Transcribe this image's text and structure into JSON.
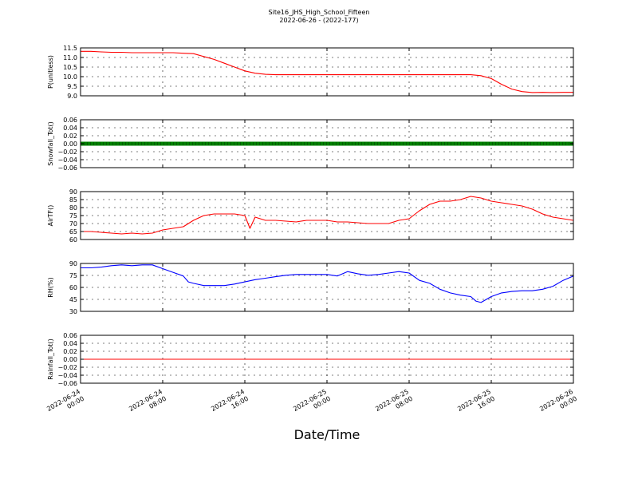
{
  "figure": {
    "title": "Site16_JHS_High_School_Fifteen",
    "subtitle": "2022-06-26 - (2022-177)",
    "xlabel": "Date/Time"
  },
  "chart_data": [
    {
      "type": "line",
      "ylabel": "P(unitless)",
      "ylim": [
        9.0,
        11.5
      ],
      "yticks": [
        "9.0",
        "9.5",
        "10.0",
        "10.5",
        "11.0",
        "11.5"
      ],
      "xlim": [
        0,
        48
      ],
      "xtick_labels": [
        "2022-06-24 00:00",
        "2022-06-24 08:00",
        "2022-06-24 16:00",
        "2022-06-25 00:00",
        "2022-06-25 08:00",
        "2022-06-25 16:00",
        "2022-06-26 00:00"
      ],
      "grid": true,
      "series": [
        {
          "color": "#ff0000",
          "x": [
            0,
            1,
            2,
            3,
            4,
            5,
            6,
            7,
            8,
            9,
            10,
            11,
            12,
            13,
            14,
            15,
            16,
            17,
            18,
            19,
            20,
            21,
            22,
            23,
            24,
            25,
            26,
            27,
            28,
            29,
            30,
            31,
            32,
            33,
            34,
            35,
            36,
            37,
            38,
            39,
            40,
            41,
            42,
            43,
            44,
            45,
            46,
            47,
            48
          ],
          "y": [
            11.32,
            11.32,
            11.29,
            11.27,
            11.27,
            11.25,
            11.25,
            11.25,
            11.25,
            11.25,
            11.22,
            11.2,
            11.05,
            10.9,
            10.7,
            10.5,
            10.3,
            10.18,
            10.12,
            10.1,
            10.1,
            10.1,
            10.1,
            10.1,
            10.1,
            10.1,
            10.1,
            10.1,
            10.1,
            10.1,
            10.1,
            10.1,
            10.1,
            10.1,
            10.1,
            10.1,
            10.1,
            10.1,
            10.1,
            10.05,
            9.9,
            9.6,
            9.35,
            9.22,
            9.17,
            9.18,
            9.17,
            9.18,
            9.18
          ]
        }
      ]
    },
    {
      "type": "line",
      "ylabel": "Snowfall_Tot()",
      "ylim": [
        -0.06,
        0.06
      ],
      "yticks": [
        "−0.06",
        "−0.04",
        "−0.02",
        "0.00",
        "0.02",
        "0.04",
        "0.06"
      ],
      "xlim": [
        0,
        48
      ],
      "xtick_labels": [
        "2022-06-24 00:00",
        "2022-06-24 08:00",
        "2022-06-24 16:00",
        "2022-06-25 00:00",
        "2022-06-25 08:00",
        "2022-06-25 16:00",
        "2022-06-26 00:00"
      ],
      "grid": true,
      "series": [
        {
          "color": "#008000",
          "style": "marker-line",
          "x": [
            0,
            48
          ],
          "y": [
            0.0,
            0.0
          ]
        }
      ]
    },
    {
      "type": "line",
      "ylabel": "AirTF()",
      "ylim": [
        60,
        90
      ],
      "yticks": [
        "60",
        "65",
        "70",
        "75",
        "80",
        "85",
        "90"
      ],
      "xlim": [
        0,
        48
      ],
      "xtick_labels": [
        "2022-06-24 00:00",
        "2022-06-24 08:00",
        "2022-06-24 16:00",
        "2022-06-25 00:00",
        "2022-06-25 08:00",
        "2022-06-25 16:00",
        "2022-06-26 00:00"
      ],
      "grid": true,
      "series": [
        {
          "color": "#ff0000",
          "x": [
            0,
            1,
            2,
            3,
            4,
            5,
            6,
            7,
            8,
            9,
            10,
            11,
            12,
            13,
            14,
            15,
            16,
            16.5,
            17,
            18,
            19,
            20,
            21,
            22,
            23,
            24,
            25,
            26,
            27,
            28,
            29,
            30,
            31,
            32,
            33,
            34,
            35,
            36,
            37,
            38,
            39,
            40,
            41,
            42,
            43,
            44,
            45,
            46,
            47,
            48
          ],
          "y": [
            65,
            65,
            64.5,
            64,
            63.5,
            64,
            63.5,
            64,
            66,
            67,
            68,
            72,
            75,
            76,
            76,
            76,
            75,
            67,
            74,
            72,
            72,
            71.5,
            71,
            72,
            72,
            72,
            71,
            71,
            70.5,
            70,
            70,
            70,
            72,
            73,
            78,
            82,
            84,
            84,
            85,
            87,
            86,
            84,
            83,
            82,
            81,
            79,
            76,
            74,
            73,
            72
          ]
        }
      ]
    },
    {
      "type": "line",
      "ylabel": "RH(%)",
      "ylim": [
        30,
        95
      ],
      "yticks": [
        "30",
        "45",
        "60",
        "75",
        "90"
      ],
      "xlim": [
        0,
        48
      ],
      "xtick_labels": [
        "2022-06-24 00:00",
        "2022-06-24 08:00",
        "2022-06-24 16:00",
        "2022-06-25 00:00",
        "2022-06-25 08:00",
        "2022-06-25 16:00",
        "2022-06-26 00:00"
      ],
      "grid": true,
      "series": [
        {
          "color": "#0000ff",
          "x": [
            0,
            1,
            2,
            3,
            4,
            5,
            6,
            7,
            8,
            9,
            10,
            10.5,
            11,
            12,
            13,
            14,
            15,
            16,
            17,
            18,
            19,
            20,
            21,
            22,
            23,
            24,
            25,
            26,
            27,
            28,
            29,
            30,
            31,
            32,
            33,
            34,
            35,
            36,
            37,
            38,
            38.5,
            39,
            40,
            41,
            42,
            43,
            44,
            45,
            46,
            47,
            48
          ],
          "y": [
            89,
            89,
            90,
            92,
            93,
            92,
            93,
            93,
            88,
            83,
            78,
            70,
            68,
            65,
            65,
            65,
            67,
            70,
            73,
            75,
            77,
            79,
            80,
            80,
            80,
            80,
            78,
            84,
            81,
            79,
            80,
            82,
            84,
            82,
            72,
            68,
            60,
            55,
            52,
            50,
            44,
            42,
            50,
            55,
            57,
            58,
            58,
            60,
            64,
            72,
            78
          ]
        }
      ]
    },
    {
      "type": "line",
      "ylabel": "Rainfall_Tot()",
      "ylim": [
        -0.06,
        0.06
      ],
      "yticks": [
        "−0.06",
        "−0.04",
        "−0.02",
        "0.00",
        "0.02",
        "0.04",
        "0.06"
      ],
      "xlim": [
        0,
        48
      ],
      "xtick_labels": [
        "2022-06-24 00:00",
        "2022-06-24 08:00",
        "2022-06-24 16:00",
        "2022-06-25 00:00",
        "2022-06-25 08:00",
        "2022-06-25 16:00",
        "2022-06-26 00:00"
      ],
      "grid": true,
      "series": [
        {
          "color": "#ff0000",
          "x": [
            0,
            48
          ],
          "y": [
            0.0,
            0.0
          ]
        }
      ]
    }
  ]
}
